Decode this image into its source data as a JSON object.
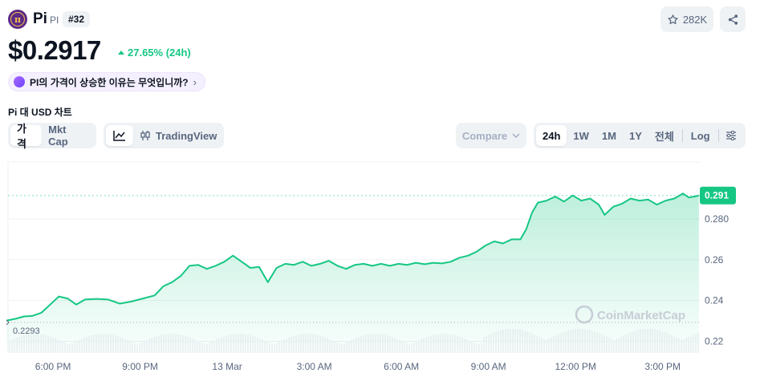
{
  "coin": {
    "logo_glyph": "π",
    "name": "Pi",
    "symbol": "PI",
    "rank": "#32",
    "watchlist_count": "282K",
    "price": "$0.2917",
    "change": "27.65% (24h)",
    "ai_question": "PI의 가격이 상승한 이유는 무엇입니까?",
    "colors": {
      "up": "#16c784",
      "logo_bg": "#5b2a86",
      "logo_gold": "#f3c14b"
    }
  },
  "chart_header": {
    "title": "Pi 대 USD 차트",
    "type_tabs": [
      {
        "label": "가격",
        "active": true
      },
      {
        "label": "Mkt Cap",
        "active": false
      }
    ],
    "view_tabs": [
      {
        "icon": "line-chart-icon"
      },
      {
        "label": "TradingView",
        "icon": "candlestick-icon"
      }
    ],
    "compare_label": "Compare",
    "range_tabs": [
      {
        "label": "24h",
        "active": true
      },
      {
        "label": "1W"
      },
      {
        "label": "1M"
      },
      {
        "label": "1Y"
      },
      {
        "label": "전체"
      },
      {
        "label": "Log"
      }
    ]
  },
  "chart_data": {
    "type": "area",
    "watermark": "CoinMarketCap",
    "x_tick_labels": [
      "6:00 PM",
      "9:00 PM",
      "13 Mar",
      "3:00 AM",
      "6:00 AM",
      "9:00 AM",
      "12:00 PM",
      "3:00 PM"
    ],
    "y_tick_labels": [
      "0.280",
      "0.26",
      "0.24",
      "0.22"
    ],
    "y_ticks": [
      0.28,
      0.26,
      0.24,
      0.22
    ],
    "ylim": [
      0.2143,
      0.3079
    ],
    "x_hours_range": [
      -1.55,
      22.28
    ],
    "start_label": "0.2293",
    "start_value": 0.2293,
    "current_label": "0.291",
    "current_value": 0.2915,
    "line_color": "#16c784",
    "series": [
      {
        "values": [
          [
            -1.6,
            0.2302
          ],
          [
            -1.3,
            0.231
          ],
          [
            -1.0,
            0.2322
          ],
          [
            -0.7,
            0.2325
          ],
          [
            -0.4,
            0.234
          ],
          [
            -0.1,
            0.238
          ],
          [
            0.2,
            0.242
          ],
          [
            0.5,
            0.241
          ],
          [
            0.8,
            0.238
          ],
          [
            1.1,
            0.2405
          ],
          [
            1.5,
            0.2408
          ],
          [
            1.9,
            0.2405
          ],
          [
            2.3,
            0.2385
          ],
          [
            2.7,
            0.2395
          ],
          [
            3.1,
            0.241
          ],
          [
            3.5,
            0.2425
          ],
          [
            3.8,
            0.247
          ],
          [
            4.1,
            0.249
          ],
          [
            4.4,
            0.252
          ],
          [
            4.7,
            0.257
          ],
          [
            5.0,
            0.2575
          ],
          [
            5.3,
            0.2555
          ],
          [
            5.6,
            0.257
          ],
          [
            5.9,
            0.259
          ],
          [
            6.2,
            0.262
          ],
          [
            6.5,
            0.259
          ],
          [
            6.8,
            0.256
          ],
          [
            7.1,
            0.2565
          ],
          [
            7.4,
            0.249
          ],
          [
            7.7,
            0.256
          ],
          [
            8.0,
            0.258
          ],
          [
            8.3,
            0.2575
          ],
          [
            8.6,
            0.259
          ],
          [
            8.9,
            0.257
          ],
          [
            9.2,
            0.258
          ],
          [
            9.5,
            0.2595
          ],
          [
            9.8,
            0.257
          ],
          [
            10.1,
            0.2555
          ],
          [
            10.4,
            0.2575
          ],
          [
            10.7,
            0.258
          ],
          [
            11.0,
            0.257
          ],
          [
            11.3,
            0.258
          ],
          [
            11.6,
            0.257
          ],
          [
            11.9,
            0.258
          ],
          [
            12.2,
            0.2575
          ],
          [
            12.5,
            0.2585
          ],
          [
            12.8,
            0.2578
          ],
          [
            13.1,
            0.2585
          ],
          [
            13.4,
            0.2582
          ],
          [
            13.7,
            0.259
          ],
          [
            14.0,
            0.261
          ],
          [
            14.3,
            0.262
          ],
          [
            14.6,
            0.264
          ],
          [
            14.9,
            0.267
          ],
          [
            15.2,
            0.269
          ],
          [
            15.5,
            0.268
          ],
          [
            15.8,
            0.27
          ],
          [
            16.1,
            0.27
          ],
          [
            16.3,
            0.275
          ],
          [
            16.5,
            0.283
          ],
          [
            16.7,
            0.288
          ],
          [
            17.0,
            0.289
          ],
          [
            17.3,
            0.291
          ],
          [
            17.6,
            0.2885
          ],
          [
            17.9,
            0.2915
          ],
          [
            18.2,
            0.289
          ],
          [
            18.5,
            0.29
          ],
          [
            18.8,
            0.287
          ],
          [
            19.0,
            0.282
          ],
          [
            19.3,
            0.286
          ],
          [
            19.6,
            0.2875
          ],
          [
            19.9,
            0.29
          ],
          [
            20.2,
            0.289
          ],
          [
            20.5,
            0.2895
          ],
          [
            20.8,
            0.287
          ],
          [
            21.1,
            0.289
          ],
          [
            21.4,
            0.29
          ],
          [
            21.7,
            0.2925
          ],
          [
            21.9,
            0.2905
          ],
          [
            22.1,
            0.291
          ],
          [
            22.25,
            0.2915
          ]
        ]
      }
    ],
    "volume_note": "light volume bars at bottom",
    "grid": "horizontal"
  }
}
